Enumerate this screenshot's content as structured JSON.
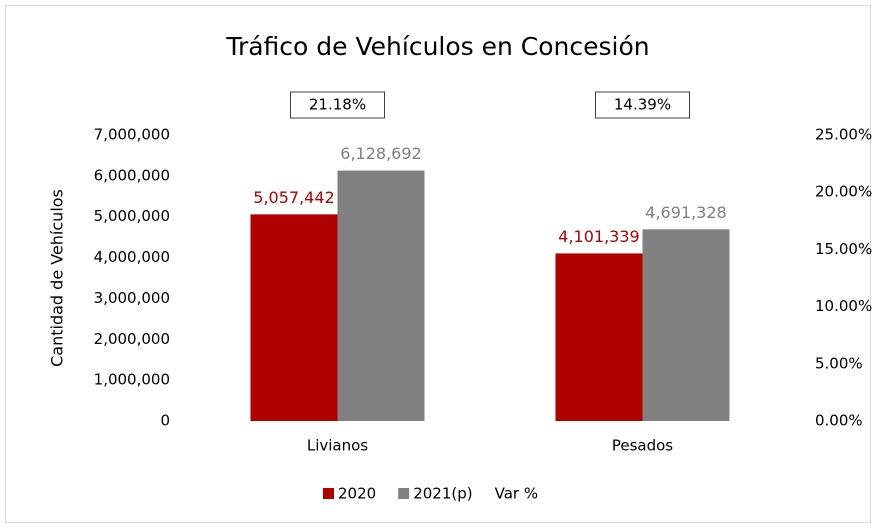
{
  "chart_data": {
    "type": "bar",
    "title": "Tráfico de Vehículos en Concesión",
    "y_label": "Cantidad de Vehículos",
    "categories": [
      "Livianos",
      "Pesados"
    ],
    "series": [
      {
        "name": "2020",
        "color": "#b00000",
        "values": [
          5057442,
          4101339
        ],
        "value_labels": [
          "5,057,442",
          "4,101,339"
        ]
      },
      {
        "name": "2021(p)",
        "color": "#808080",
        "values": [
          6128692,
          4691328
        ],
        "value_labels": [
          "6,128,692",
          "4,691,328"
        ]
      },
      {
        "name": "Var %",
        "axis": "y2",
        "values": [
          21.18,
          14.39
        ],
        "value_labels": [
          "21.18%",
          "14.39%"
        ]
      }
    ],
    "ylim": [
      0,
      7000000
    ],
    "yticks": [
      {
        "value": 0,
        "label": "0"
      },
      {
        "value": 1000000,
        "label": "1,000,000"
      },
      {
        "value": 2000000,
        "label": "2,000,000"
      },
      {
        "value": 3000000,
        "label": "3,000,000"
      },
      {
        "value": 4000000,
        "label": "4,000,000"
      },
      {
        "value": 5000000,
        "label": "5,000,000"
      },
      {
        "value": 6000000,
        "label": "6,000,000"
      },
      {
        "value": 7000000,
        "label": "7,000,000"
      }
    ],
    "y2lim": [
      0,
      25
    ],
    "y2ticks": [
      {
        "value": 0,
        "label": "0.00%"
      },
      {
        "value": 5,
        "label": "5.00%"
      },
      {
        "value": 10,
        "label": "10.00%"
      },
      {
        "value": 15,
        "label": "15.00%"
      },
      {
        "value": 20,
        "label": "20.00%"
      },
      {
        "value": 25,
        "label": "25.00%"
      }
    ],
    "legend": "bottom"
  }
}
